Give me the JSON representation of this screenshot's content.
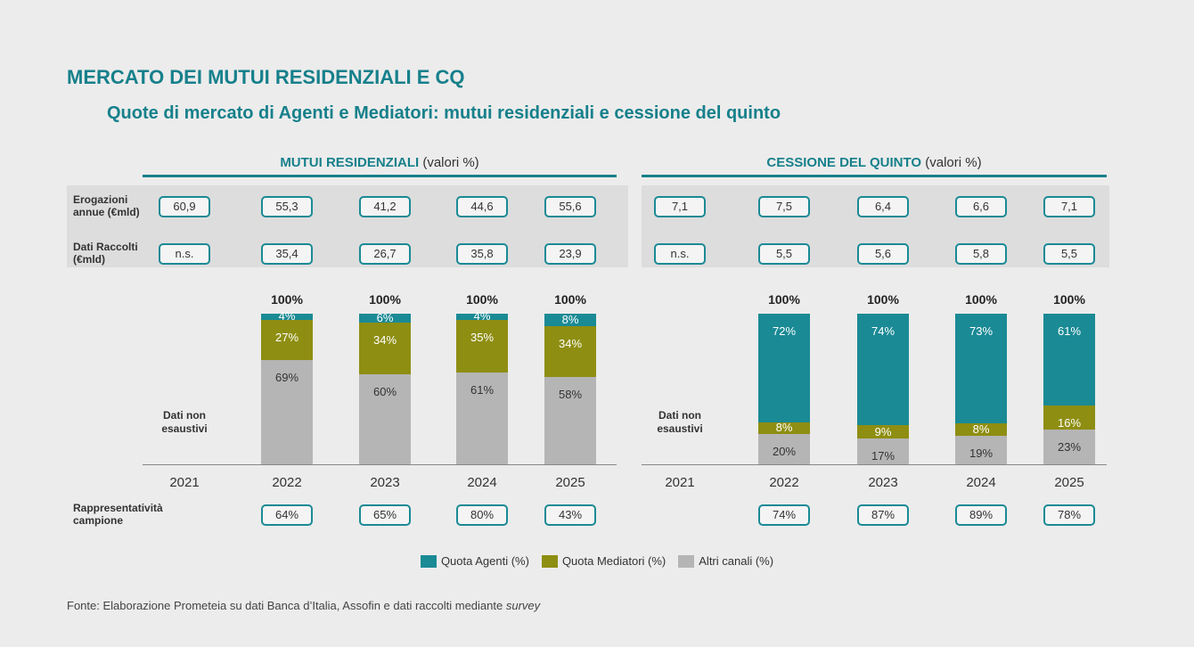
{
  "header": {
    "title": "MERCATO DEI MUTUI RESIDENZIALI E CQ",
    "subtitle": "Quote di mercato di Agenti e Mediatori: mutui residenziali e cessione del quinto"
  },
  "chart_data": [
    {
      "type": "stacked_bar",
      "title": "MUTUI RESIDENZIALI",
      "title_note": "(valori %)",
      "categories": [
        "2021",
        "2022",
        "2023",
        "2024",
        "2025"
      ],
      "ylim": [
        0,
        100
      ],
      "series": [
        {
          "name": "Quota Agenti (%)",
          "color": "#1a8a95",
          "values": [
            null,
            4,
            6,
            4,
            8
          ],
          "value_labels": [
            null,
            "4%",
            "6%",
            "4%",
            "8%"
          ]
        },
        {
          "name": "Quota Mediatori (%)",
          "color": "#8e8e12",
          "values": [
            null,
            27,
            34,
            35,
            34
          ],
          "value_labels": [
            null,
            "27%",
            "34%",
            "35%",
            "34%"
          ]
        },
        {
          "name": "Altri canali (%)",
          "color": "#b5b5b5",
          "values": [
            null,
            69,
            60,
            61,
            58
          ],
          "value_labels": [
            null,
            "69%",
            "60%",
            "61%",
            "58%"
          ]
        }
      ],
      "total_labels": [
        null,
        "100%",
        "100%",
        "100%",
        "100%"
      ],
      "annotation": "Dati non esaustivi",
      "rows": [
        {
          "label": "Erogazioni annue (€mld)",
          "values": [
            "60,9",
            "55,3",
            "41,2",
            "44,6",
            "55,6"
          ]
        },
        {
          "label": "Dati Raccolti (€mld)",
          "values": [
            "n.s.",
            "35,4",
            "26,7",
            "35,8",
            "23,9"
          ]
        },
        {
          "label": "Rappresentatività campione",
          "values": [
            null,
            "64%",
            "65%",
            "80%",
            "43%"
          ]
        }
      ]
    },
    {
      "type": "stacked_bar",
      "title": "CESSIONE DEL QUINTO",
      "title_note": "(valori %)",
      "categories": [
        "2021",
        "2022",
        "2023",
        "2024",
        "2025"
      ],
      "ylim": [
        0,
        100
      ],
      "series": [
        {
          "name": "Quota Agenti (%)",
          "color": "#1a8a95",
          "values": [
            null,
            72,
            74,
            73,
            61
          ],
          "value_labels": [
            null,
            "72%",
            "74%",
            "73%",
            "61%"
          ]
        },
        {
          "name": "Quota Mediatori (%)",
          "color": "#8e8e12",
          "values": [
            null,
            8,
            9,
            8,
            16
          ],
          "value_labels": [
            null,
            "8%",
            "9%",
            "8%",
            "16%"
          ]
        },
        {
          "name": "Altri canali (%)",
          "color": "#b5b5b5",
          "values": [
            null,
            20,
            17,
            19,
            23
          ],
          "value_labels": [
            null,
            "20%",
            "17%",
            "19%",
            "23%"
          ]
        }
      ],
      "total_labels": [
        null,
        "100%",
        "100%",
        "100%",
        "100%"
      ],
      "annotation": "Dati non esaustivi",
      "rows": [
        {
          "values": [
            "7,1",
            "7,5",
            "6,4",
            "6,6",
            "7,1"
          ]
        },
        {
          "values": [
            "n.s.",
            "5,5",
            "5,6",
            "5,8",
            "5,5"
          ]
        },
        {
          "values": [
            null,
            "74%",
            "87%",
            "89%",
            "78%"
          ]
        }
      ]
    }
  ],
  "source": {
    "text": "Fonte: Elaborazione Prometeia su dati Banca d’Italia, Assofin e dati raccolti mediante ",
    "emphasis": "survey"
  }
}
